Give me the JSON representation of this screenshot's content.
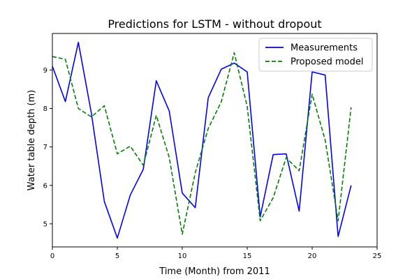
{
  "chart_data": {
    "type": "line",
    "title": "Predictions for LSTM - without dropout",
    "xlabel": "Time (Month) from 2011",
    "ylabel": "Water table depth (m)",
    "xlim": [
      0,
      25
    ],
    "ylim": [
      4.4,
      9.95
    ],
    "xticks": [
      0,
      5,
      10,
      15,
      20,
      25
    ],
    "yticks": [
      5,
      6,
      7,
      8,
      9
    ],
    "grid": false,
    "legend_position": "top-right",
    "x": [
      0,
      1,
      2,
      3,
      4,
      5,
      6,
      7,
      8,
      9,
      10,
      11,
      12,
      13,
      14,
      15,
      16,
      17,
      18,
      19,
      20,
      21,
      22,
      23
    ],
    "series": [
      {
        "name": "Measurements",
        "color": "#0000ff",
        "style": "solid",
        "values": [
          9.1,
          8.18,
          9.72,
          7.88,
          5.58,
          4.63,
          5.75,
          6.42,
          8.72,
          7.93,
          5.8,
          5.42,
          8.28,
          9.02,
          9.18,
          8.95,
          5.18,
          6.8,
          6.82,
          5.33,
          8.95,
          8.87,
          4.67,
          6.0
        ]
      },
      {
        "name": "Proposed model",
        "color": "#008000",
        "style": "dashed",
        "values": [
          9.35,
          9.28,
          8.0,
          7.78,
          8.07,
          6.82,
          7.02,
          6.52,
          7.82,
          6.72,
          4.73,
          6.33,
          7.48,
          8.17,
          9.45,
          8.05,
          5.08,
          5.68,
          6.72,
          6.38,
          8.37,
          7.18,
          5.08,
          8.03
        ]
      }
    ]
  }
}
